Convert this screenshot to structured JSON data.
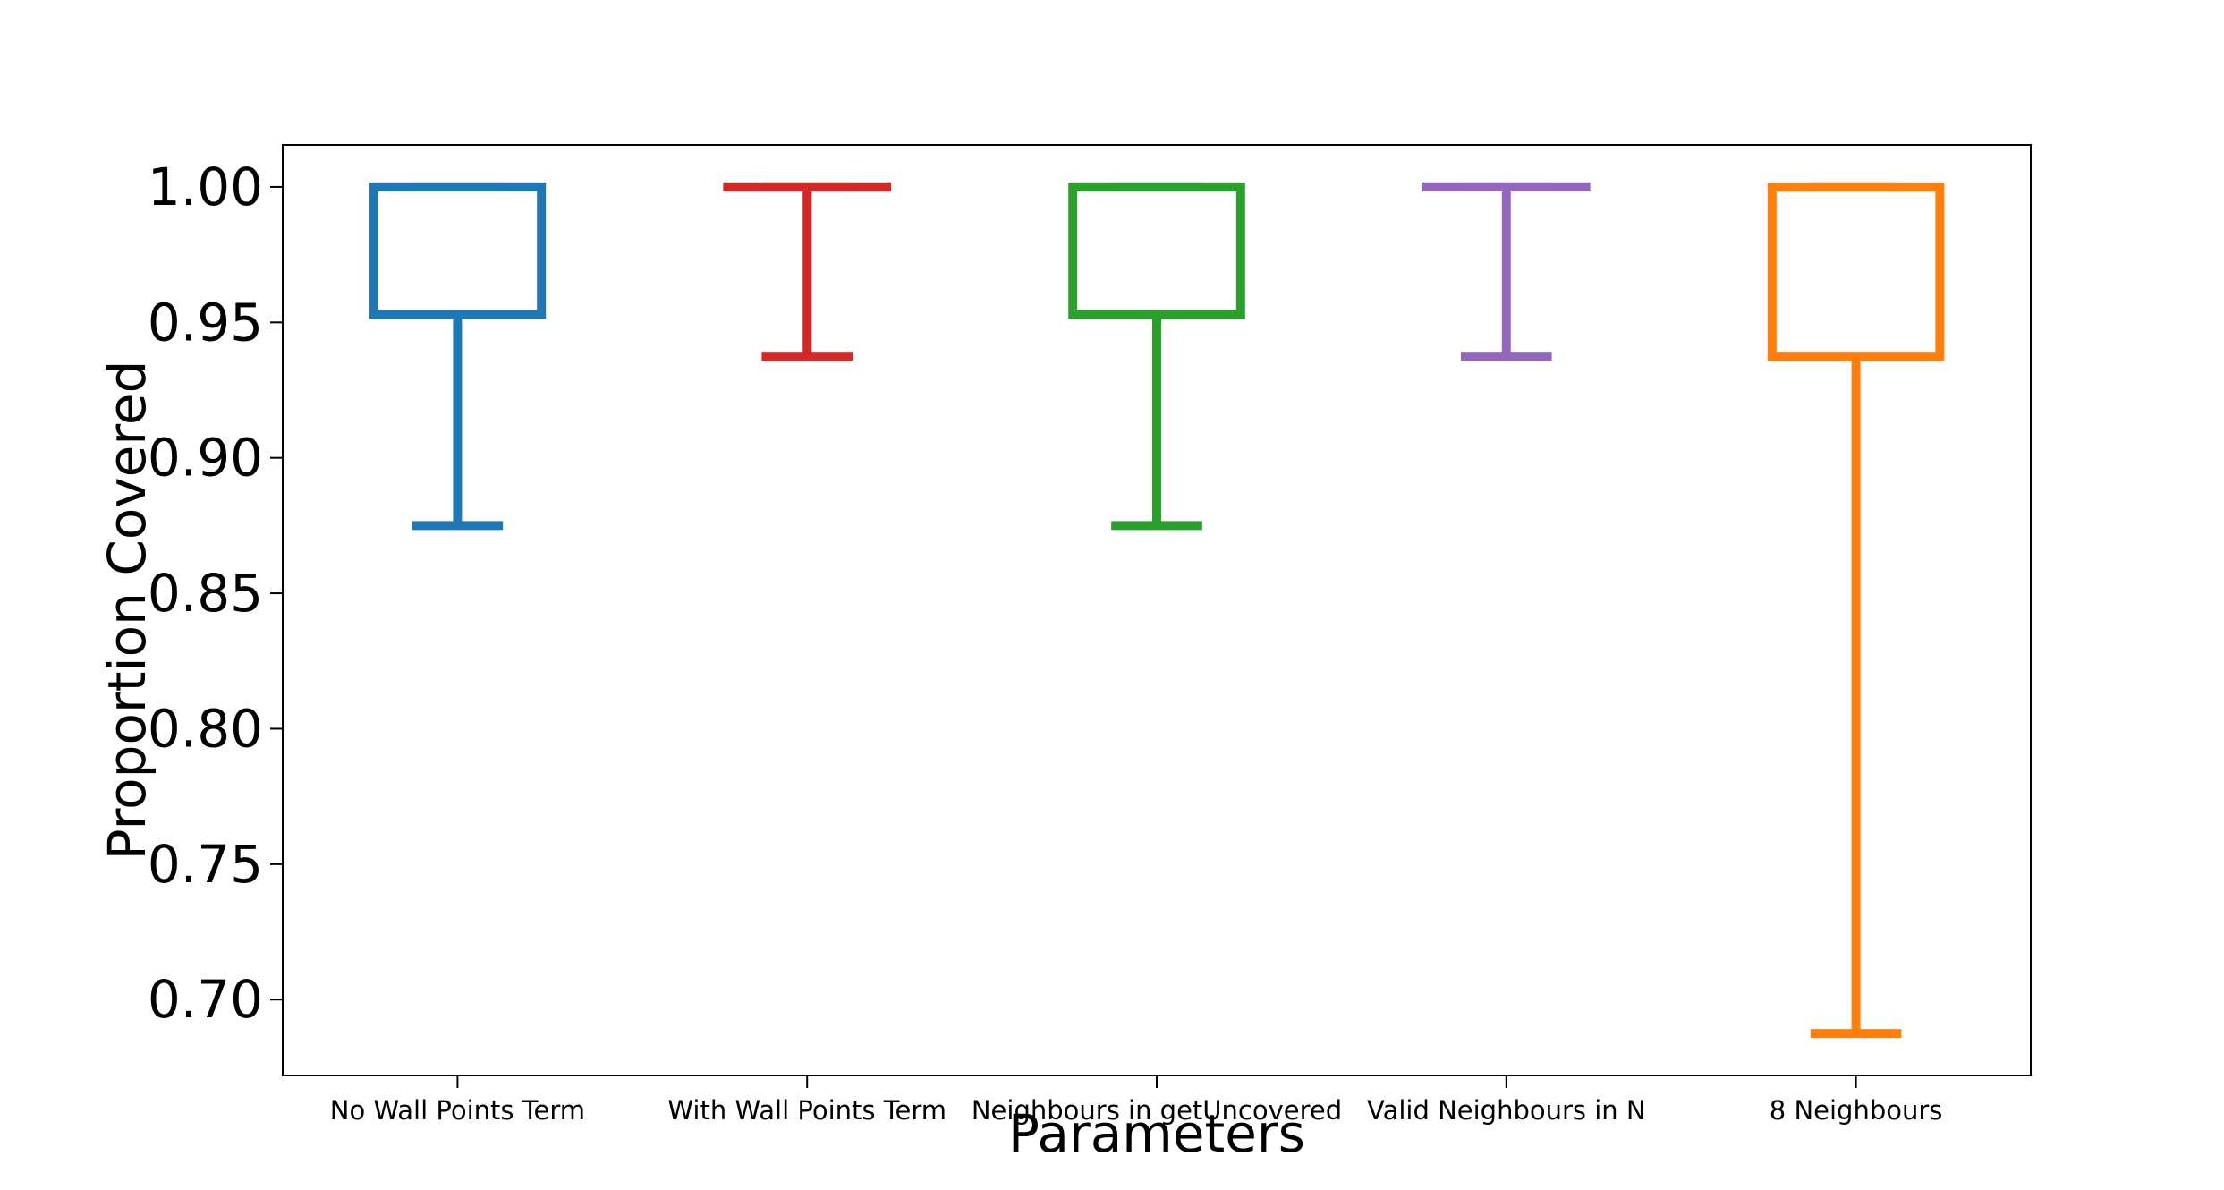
{
  "chart_data": {
    "type": "box",
    "title": "",
    "xlabel": "Parameters",
    "ylabel": "Proportion Covered",
    "ylim": [
      0.672,
      1.0155
    ],
    "yticks": [
      "0.70",
      "0.75",
      "0.80",
      "0.85",
      "0.90",
      "0.95",
      "1.00"
    ],
    "ytick_values": [
      0.7,
      0.75,
      0.8,
      0.85,
      0.9,
      0.95,
      1.0
    ],
    "grid": false,
    "legend": "none",
    "categories": [
      "No Wall Points Term",
      "With Wall Points Term",
      "Neighbours in getUncovered",
      "Valid Neighbours in N",
      "8 Neighbours"
    ],
    "series": [
      {
        "category": "No Wall Points Term",
        "color": "#1f77b4",
        "whisker_low": 0.875,
        "q1": 0.953,
        "median": 1.0,
        "q3": 1.0,
        "whisker_high": 1.0
      },
      {
        "category": "With Wall Points Term",
        "color": "#d62728",
        "whisker_low": 0.9375,
        "q1": 1.0,
        "median": 1.0,
        "q3": 1.0,
        "whisker_high": 1.0
      },
      {
        "category": "Neighbours in getUncovered",
        "color": "#2ca02c",
        "whisker_low": 0.875,
        "q1": 0.953,
        "median": 1.0,
        "q3": 1.0,
        "whisker_high": 1.0
      },
      {
        "category": "Valid Neighbours in N",
        "color": "#9467bd",
        "whisker_low": 0.9375,
        "q1": 1.0,
        "median": 1.0,
        "q3": 1.0,
        "whisker_high": 1.0
      },
      {
        "category": "8 Neighbours",
        "color": "#ff7f0e",
        "whisker_low": 0.6875,
        "q1": 0.9375,
        "median": 1.0,
        "q3": 1.0,
        "whisker_high": 1.0
      }
    ]
  }
}
